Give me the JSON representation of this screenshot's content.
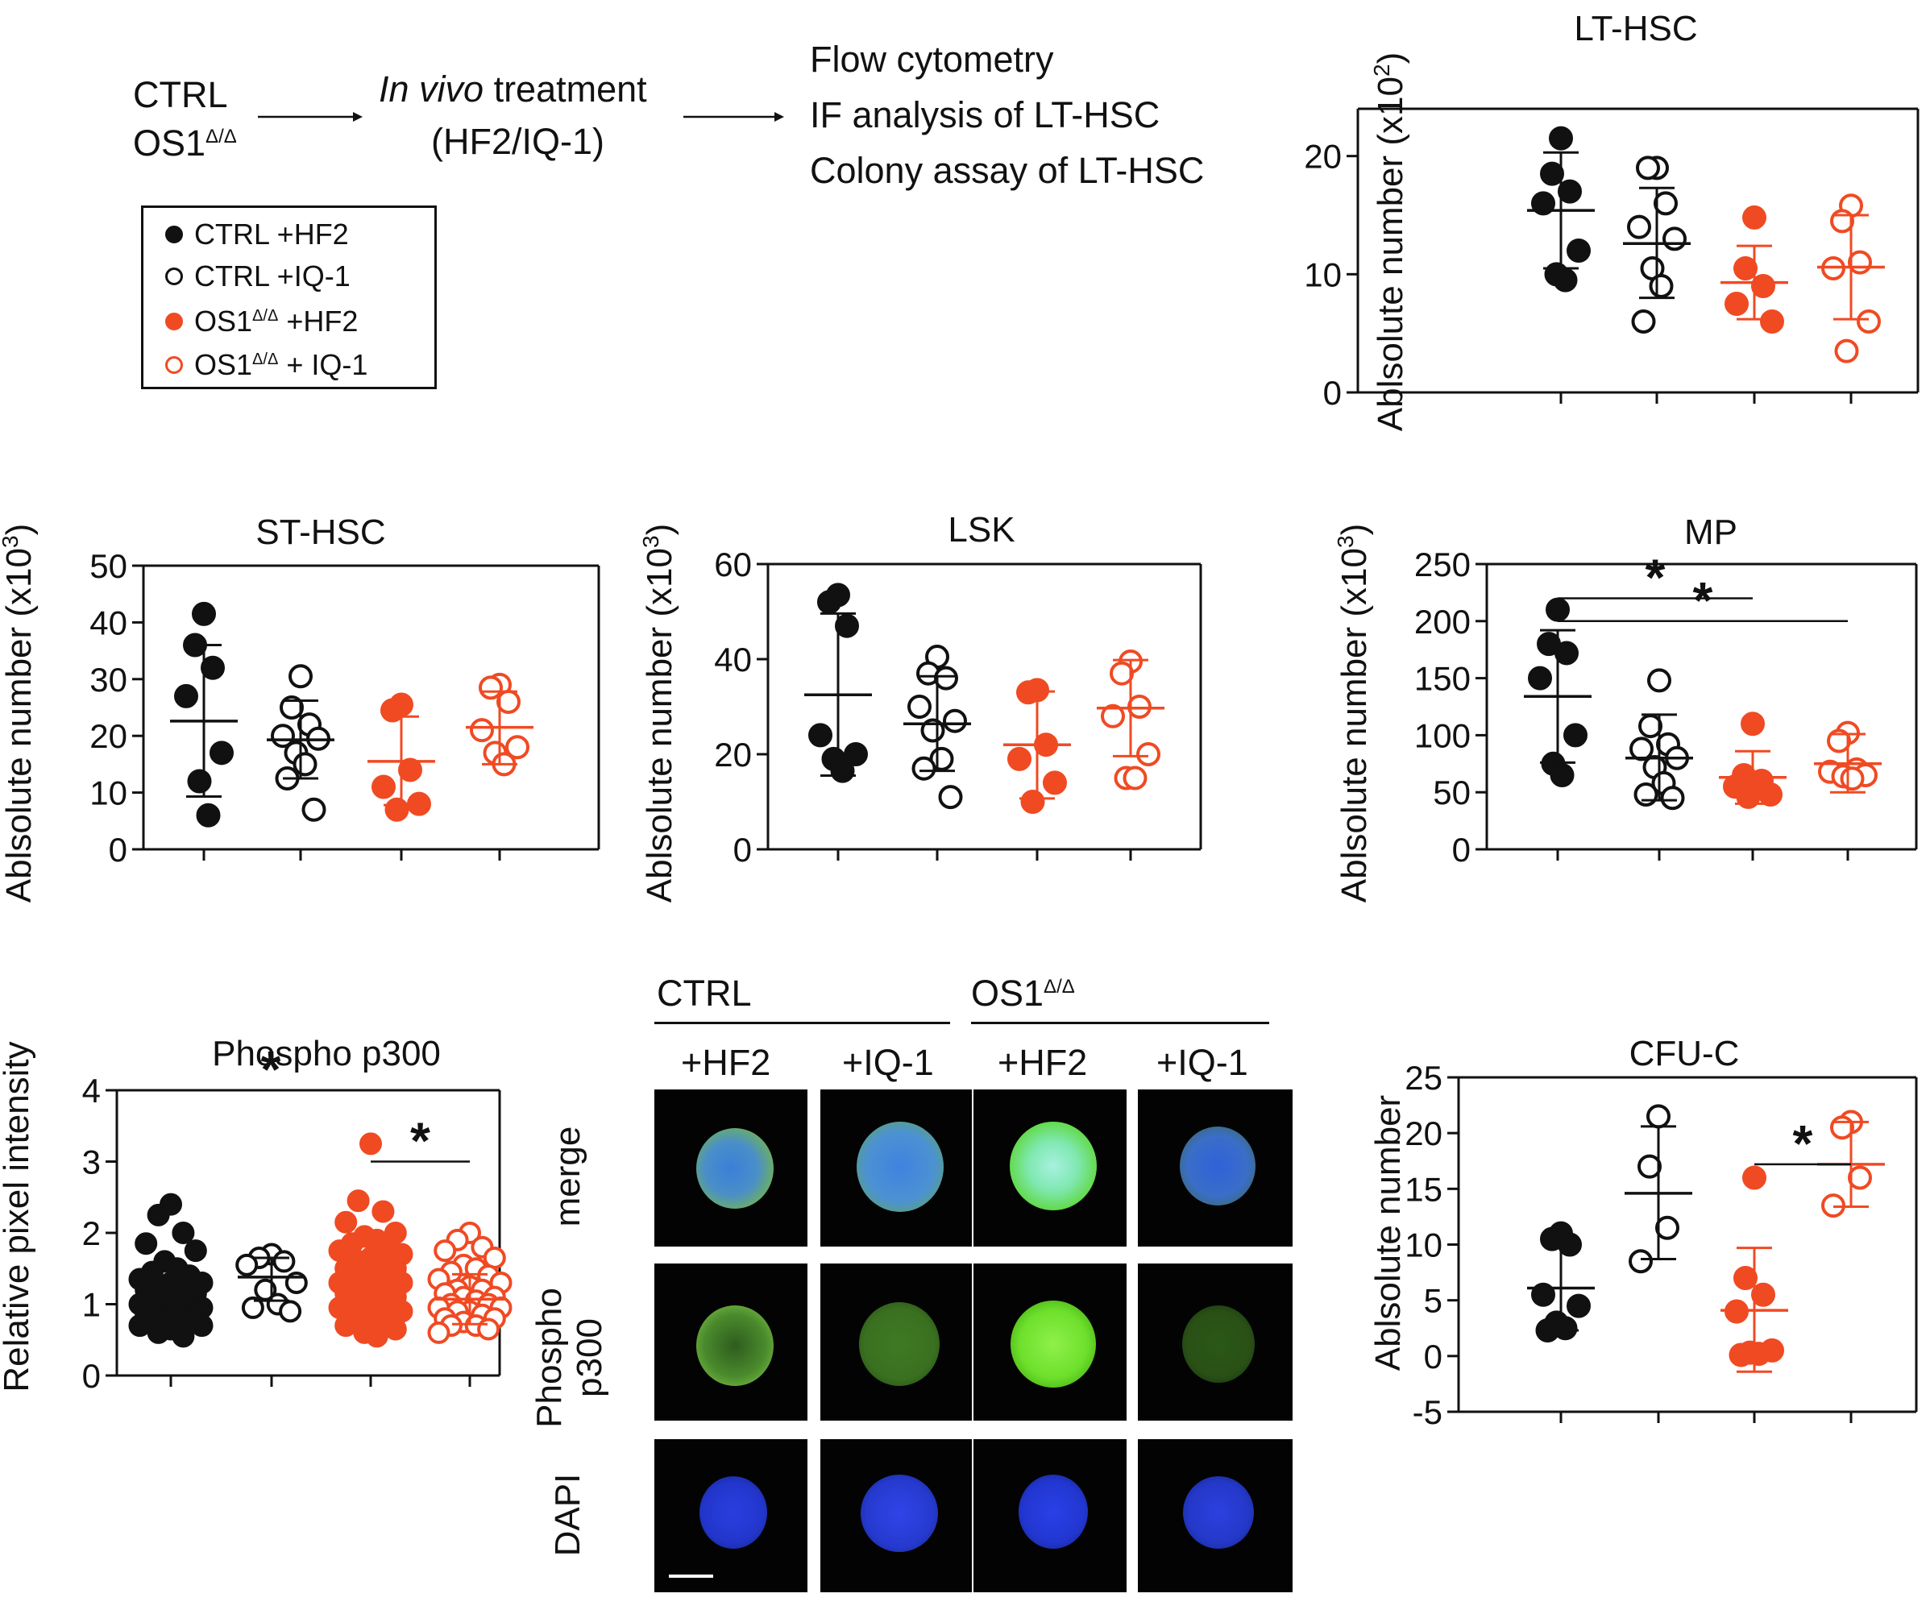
{
  "workflow": {
    "group_ctrl": "CTRL",
    "group_os1": "OS1",
    "os1_sup": "Δ/Δ",
    "treatment_italic": "In vivo",
    "treatment_rest": " treatment",
    "treatment_drugs": "(HF2/IQ-1)",
    "outputs": [
      "Flow cytometry",
      "IF analysis of LT-HSC",
      "Colony assay of LT-HSC"
    ]
  },
  "legend": {
    "items": [
      {
        "label": "CTRL +HF2",
        "color": "#111111",
        "filled": true
      },
      {
        "label": "CTRL +IQ-1",
        "color": "#111111",
        "filled": false
      },
      {
        "label_pre": "OS1",
        "sup": "Δ/Δ",
        "label_post": " +HF2",
        "color": "#f04a23",
        "filled": true
      },
      {
        "label_pre": "OS1",
        "sup": "Δ/Δ",
        "label_post": " + IQ-1",
        "color": "#f04a23",
        "filled": false
      }
    ]
  },
  "colors": {
    "ctrl": "#111111",
    "os1": "#f04a23"
  },
  "chart_data": [
    {
      "id": "lt-hsc",
      "type": "scatter",
      "title": "LT-HSC",
      "ylabel": "Ablsolute number (x10",
      "ylabel_exp": "2",
      "ylabel_close": ")",
      "ylim": [
        0,
        24
      ],
      "yticks": [
        0,
        10,
        20
      ],
      "groups": [
        {
          "values": [
            21.5,
            18.5,
            17,
            16,
            12,
            10,
            9.5
          ],
          "mean": 15.4,
          "sd_low": 10.5,
          "sd_high": 20.3,
          "color": "#111111",
          "filled": true
        },
        {
          "values": [
            19,
            19,
            16,
            14,
            13,
            10.5,
            9,
            6
          ],
          "mean": 12.6,
          "sd_low": 8,
          "sd_high": 17.3,
          "color": "#111111",
          "filled": false
        },
        {
          "values": [
            14.8,
            10.5,
            9,
            7.5,
            6
          ],
          "mean": 9.3,
          "sd_low": 6.2,
          "sd_high": 12.4,
          "color": "#f04a23",
          "filled": true
        },
        {
          "values": [
            15.8,
            14.5,
            11,
            10.5,
            6,
            3.5
          ],
          "mean": 10.6,
          "sd_low": 6.2,
          "sd_high": 15,
          "color": "#f04a23",
          "filled": false
        }
      ],
      "significance": []
    },
    {
      "id": "st-hsc",
      "type": "scatter",
      "title": "ST-HSC",
      "ylabel": "Ablsolute number (x10",
      "ylabel_exp": "3",
      "ylabel_close": ")",
      "ylim": [
        0,
        50
      ],
      "yticks": [
        0,
        10,
        20,
        30,
        40,
        50
      ],
      "groups": [
        {
          "values": [
            41.5,
            36,
            32,
            27,
            17,
            12,
            6
          ],
          "mean": 22.6,
          "sd_low": 9.3,
          "sd_high": 36,
          "color": "#111111",
          "filled": true
        },
        {
          "values": [
            30.5,
            25,
            22,
            20,
            19.5,
            17,
            15,
            12.5,
            7
          ],
          "mean": 19.3,
          "sd_low": 12.5,
          "sd_high": 26.2,
          "color": "#111111",
          "filled": false
        },
        {
          "values": [
            25.5,
            24.5,
            14,
            11,
            8,
            7
          ],
          "mean": 15.5,
          "sd_low": 7.8,
          "sd_high": 23.4,
          "color": "#f04a23",
          "filled": true
        },
        {
          "values": [
            29,
            28.5,
            26,
            21,
            18,
            17,
            15
          ],
          "mean": 21.5,
          "sd_low": 15,
          "sd_high": 27.8,
          "color": "#f04a23",
          "filled": false
        }
      ],
      "significance": []
    },
    {
      "id": "lsk",
      "type": "scatter",
      "title": "LSK",
      "ylabel": "Ablsolute number (x10",
      "ylabel_exp": "3",
      "ylabel_close": ")",
      "ylim": [
        0,
        60
      ],
      "yticks": [
        0,
        20,
        40,
        60
      ],
      "groups": [
        {
          "values": [
            53.5,
            52,
            47,
            24,
            20,
            19,
            16.5
          ],
          "mean": 32.5,
          "sd_low": 15.5,
          "sd_high": 49.6,
          "color": "#111111",
          "filled": true
        },
        {
          "values": [
            40.5,
            37,
            36,
            30,
            27,
            25,
            19,
            17,
            11
          ],
          "mean": 26.4,
          "sd_low": 16.5,
          "sd_high": 36.4,
          "color": "#111111",
          "filled": false
        },
        {
          "values": [
            33.5,
            33,
            22,
            19,
            14,
            10
          ],
          "mean": 22,
          "sd_low": 10.7,
          "sd_high": 33.2,
          "color": "#f04a23",
          "filled": true
        },
        {
          "values": [
            39.5,
            37,
            30,
            28,
            20,
            15,
            15
          ],
          "mean": 29.7,
          "sd_low": 19.6,
          "sd_high": 39.8,
          "color": "#f04a23",
          "filled": false
        }
      ],
      "significance": []
    },
    {
      "id": "mp",
      "type": "scatter",
      "title": "MP",
      "ylabel": "Ablsolute number (x10",
      "ylabel_exp": "3",
      "ylabel_close": ")",
      "ylim": [
        0,
        250
      ],
      "yticks": [
        0,
        50,
        100,
        150,
        200,
        250
      ],
      "groups": [
        {
          "values": [
            210,
            180,
            172,
            150,
            100,
            75,
            65
          ],
          "mean": 134,
          "sd_low": 76,
          "sd_high": 192,
          "color": "#111111",
          "filled": true
        },
        {
          "values": [
            148,
            108,
            92,
            88,
            80,
            72,
            58,
            48,
            45
          ],
          "mean": 80,
          "sd_low": 43,
          "sd_high": 118,
          "color": "#111111",
          "filled": false
        },
        {
          "values": [
            110,
            65,
            60,
            55,
            48,
            46
          ],
          "mean": 63,
          "sd_low": 40,
          "sd_high": 86,
          "color": "#f04a23",
          "filled": true
        },
        {
          "values": [
            102,
            95,
            70,
            68,
            65,
            64,
            62
          ],
          "mean": 75,
          "sd_low": 50,
          "sd_high": 101,
          "color": "#f04a23",
          "filled": false
        }
      ],
      "significance": [
        {
          "from": 0,
          "to": 2,
          "y": 220,
          "label": "*"
        },
        {
          "from": 0,
          "to": 3,
          "y": 200,
          "label": "*"
        }
      ]
    },
    {
      "id": "phospho-p300",
      "type": "scatter",
      "title": "Phospho p300",
      "ylabel": "Relative pixel intensity",
      "ylabel_exp": "",
      "ylabel_close": "",
      "ylim": [
        0,
        4
      ],
      "yticks": [
        0,
        1,
        2,
        3,
        4
      ],
      "groups": [
        {
          "values": [
            2.4,
            2.25,
            2.0,
            1.85,
            1.75,
            1.6,
            1.5,
            1.45,
            1.4,
            1.35,
            1.3,
            1.3,
            1.25,
            1.2,
            1.2,
            1.15,
            1.1,
            1.1,
            1.05,
            1.0,
            1.0,
            0.95,
            0.95,
            0.9,
            0.9,
            0.85,
            0.85,
            0.8,
            0.8,
            0.75,
            0.75,
            0.7,
            0.7,
            0.65,
            0.6,
            0.55
          ],
          "mean": 1.0,
          "sd_low": 0.7,
          "sd_high": 1.35,
          "color": "#111111",
          "filled": true
        },
        {
          "values": [
            1.7,
            1.65,
            1.6,
            1.55,
            1.3,
            1.2,
            1.0,
            0.95,
            0.9
          ],
          "mean": 1.38,
          "sd_low": 1.05,
          "sd_high": 1.65,
          "color": "#111111",
          "filled": false
        },
        {
          "values": [
            3.25,
            2.45,
            2.3,
            2.15,
            2.0,
            1.95,
            1.9,
            1.85,
            1.8,
            1.75,
            1.7,
            1.65,
            1.6,
            1.55,
            1.5,
            1.5,
            1.45,
            1.4,
            1.4,
            1.35,
            1.3,
            1.3,
            1.25,
            1.2,
            1.2,
            1.15,
            1.1,
            1.1,
            1.05,
            1.0,
            1.0,
            0.95,
            0.9,
            0.85,
            0.8,
            0.75,
            0.7,
            0.65,
            0.6,
            0.55
          ],
          "mean": 1.48,
          "sd_low": 1.0,
          "sd_high": 1.95,
          "color": "#f04a23",
          "filled": true
        },
        {
          "values": [
            2.0,
            1.9,
            1.8,
            1.75,
            1.65,
            1.55,
            1.5,
            1.45,
            1.4,
            1.35,
            1.3,
            1.25,
            1.2,
            1.2,
            1.15,
            1.1,
            1.1,
            1.05,
            1.0,
            1.0,
            0.95,
            0.95,
            0.9,
            0.9,
            0.85,
            0.8,
            0.8,
            0.75,
            0.7,
            0.7,
            0.65,
            0.6
          ],
          "mean": 1.07,
          "sd_low": 0.72,
          "sd_high": 1.42,
          "color": "#f04a23",
          "filled": false
        }
      ],
      "significance": [
        {
          "from": 0,
          "to": 2,
          "y": 4.0,
          "label": "*"
        },
        {
          "from": 2,
          "to": 3,
          "y": 3.0,
          "label": "*"
        }
      ]
    },
    {
      "id": "cfu-c",
      "type": "scatter",
      "title": "CFU-C",
      "ylabel": "Ablsolute number",
      "ylabel_exp": "",
      "ylabel_close": "",
      "ylim": [
        -5,
        25
      ],
      "yticks": [
        -5,
        0,
        5,
        10,
        15,
        20,
        25
      ],
      "groups": [
        {
          "values": [
            11,
            10.5,
            10,
            5.5,
            4.5,
            3,
            2.5,
            2.3
          ],
          "mean": 6.1,
          "sd_low": 2.3,
          "sd_high": 9.9,
          "color": "#111111",
          "filled": true
        },
        {
          "values": [
            21.5,
            17,
            11.5,
            8.5
          ],
          "mean": 14.6,
          "sd_low": 8.7,
          "sd_high": 20.6,
          "color": "#111111",
          "filled": false
        },
        {
          "values": [
            16,
            7,
            5.5,
            4,
            0.5,
            0.3,
            0.2,
            0.1
          ],
          "mean": 4.1,
          "sd_low": -1.4,
          "sd_high": 9.7,
          "color": "#f04a23",
          "filled": true
        },
        {
          "values": [
            21,
            20.5,
            16,
            13.5
          ],
          "mean": 17.2,
          "sd_low": 13.4,
          "sd_high": 21,
          "color": "#f04a23",
          "filled": false
        }
      ],
      "significance": [
        {
          "from": 2,
          "to": 3,
          "y": 17.2,
          "label": "*"
        }
      ]
    }
  ],
  "if_panel": {
    "header_ctrl": "CTRL",
    "header_os1": "OS1",
    "os1_sup": "Δ/Δ",
    "columns": [
      "+HF2",
      "+IQ-1",
      "+HF2",
      "+IQ-1"
    ],
    "rows": [
      "merge",
      "Phospho\np300",
      "DAPI"
    ],
    "row_line1": [
      "merge",
      "Phospho",
      "DAPI"
    ],
    "row_line2": [
      "",
      "p300",
      ""
    ]
  }
}
